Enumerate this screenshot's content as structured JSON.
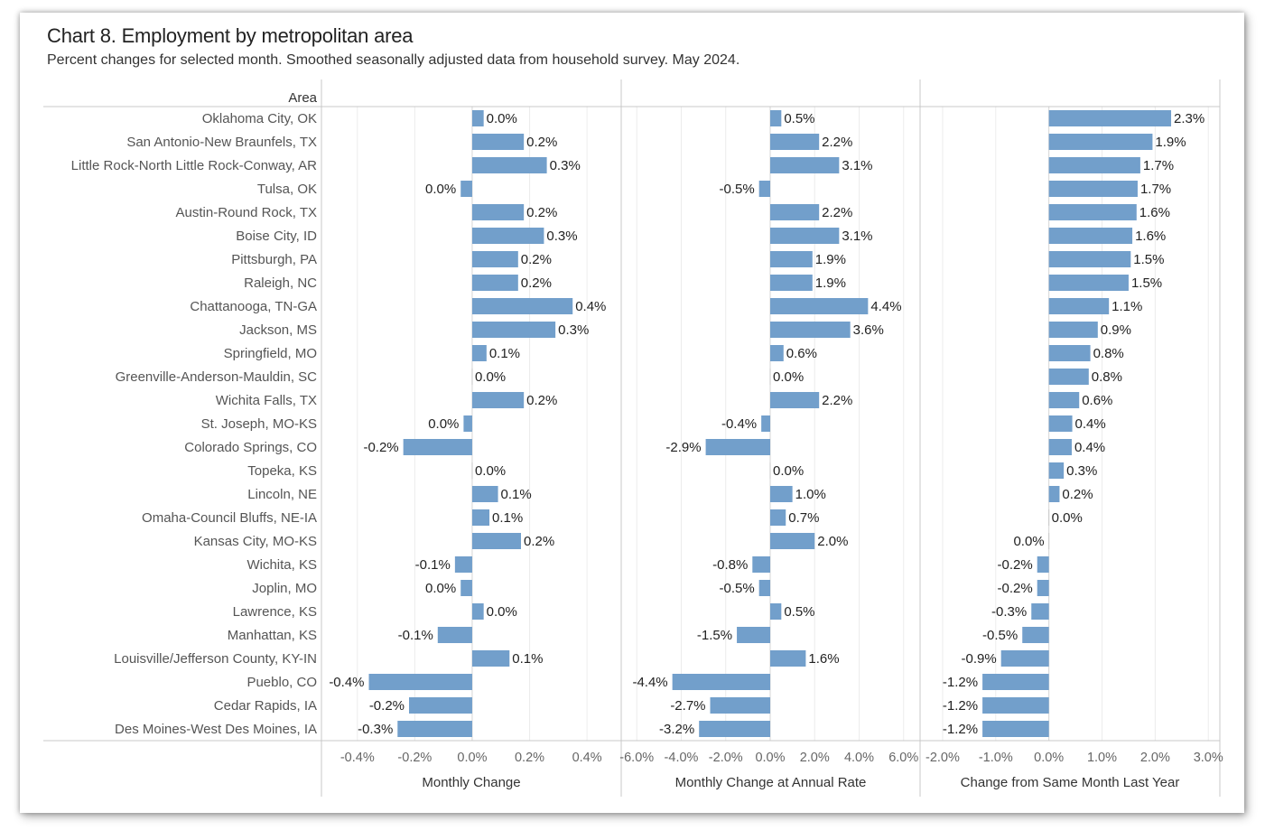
{
  "title": "Chart 8. Employment by metropolitan area",
  "subtitle": "Percent changes for selected month. Smoothed seasonally adjusted data from household survey. May 2024.",
  "chart_data": {
    "type": "bar",
    "orientation": "horizontal",
    "row_header": "Area",
    "categories": [
      "Oklahoma City, OK",
      "San Antonio-New Braunfels, TX",
      "Little Rock-North Little Rock-Conway, AR",
      "Tulsa, OK",
      "Austin-Round Rock, TX",
      "Boise City, ID",
      "Pittsburgh, PA",
      "Raleigh, NC",
      "Chattanooga, TN-GA",
      "Jackson, MS",
      "Springfield, MO",
      "Greenville-Anderson-Mauldin, SC",
      "Wichita Falls, TX",
      "St. Joseph, MO-KS",
      "Colorado Springs, CO",
      "Topeka, KS",
      "Lincoln, NE",
      "Omaha-Council Bluffs, NE-IA",
      "Kansas City, MO-KS",
      "Wichita, KS",
      "Joplin, MO",
      "Lawrence, KS",
      "Manhattan, KS",
      "Louisville/Jefferson County, KY-IN",
      "Pueblo, CO",
      "Cedar Rapids, IA",
      "Des Moines-West Des Moines, IA"
    ],
    "bar_color": "#729fcb",
    "grid": true,
    "panels": [
      {
        "name": "Monthly Change",
        "xlim": [
          -0.5,
          0.45
        ],
        "ticks": [
          -0.4,
          -0.2,
          0.0,
          0.2,
          0.4
        ],
        "tick_labels": [
          "-0.4%",
          "-0.2%",
          "0.0%",
          "0.2%",
          "0.4%"
        ],
        "values": [
          0.04,
          0.18,
          0.26,
          -0.04,
          0.18,
          0.25,
          0.16,
          0.16,
          0.35,
          0.29,
          0.05,
          0.0,
          0.18,
          -0.03,
          -0.24,
          0.0,
          0.09,
          0.06,
          0.17,
          -0.06,
          -0.04,
          0.04,
          -0.12,
          0.13,
          -0.36,
          -0.22,
          -0.26
        ],
        "labels": [
          "0.0%",
          "0.2%",
          "0.3%",
          "0.0%",
          "0.2%",
          "0.3%",
          "0.2%",
          "0.2%",
          "0.4%",
          "0.3%",
          "0.1%",
          "0.0%",
          "0.2%",
          "0.0%",
          "-0.2%",
          "0.0%",
          "0.1%",
          "0.1%",
          "0.2%",
          "-0.1%",
          "0.0%",
          "0.0%",
          "-0.1%",
          "0.1%",
          "-0.4%",
          "-0.2%",
          "-0.3%"
        ]
      },
      {
        "name": "Monthly Change at Annual Rate",
        "xlim": [
          -6.7,
          6.7
        ],
        "ticks": [
          -6,
          -4,
          -2,
          0,
          2,
          4,
          6
        ],
        "tick_labels": [
          "-6.0%",
          "-4.0%",
          "-2.0%",
          "0.0%",
          "2.0%",
          "4.0%",
          "6.0%"
        ],
        "values": [
          0.5,
          2.2,
          3.1,
          -0.5,
          2.2,
          3.1,
          1.9,
          1.9,
          4.4,
          3.6,
          0.6,
          0.0,
          2.2,
          -0.4,
          -2.9,
          0.0,
          1.0,
          0.7,
          2.0,
          -0.8,
          -0.5,
          0.5,
          -1.5,
          1.6,
          -4.4,
          -2.7,
          -3.2
        ],
        "labels": [
          "0.5%",
          "2.2%",
          "3.1%",
          "-0.5%",
          "2.2%",
          "3.1%",
          "1.9%",
          "1.9%",
          "4.4%",
          "3.6%",
          "0.6%",
          "0.0%",
          "2.2%",
          "-0.4%",
          "-2.9%",
          "0.0%",
          "1.0%",
          "0.7%",
          "2.0%",
          "-0.8%",
          "-0.5%",
          "0.5%",
          "-1.5%",
          "1.6%",
          "-4.4%",
          "-2.7%",
          "-3.2%"
        ]
      },
      {
        "name": "Change from Same Month Last Year",
        "xlim": [
          -2.05,
          3.2
        ],
        "ticks": [
          -2,
          -1,
          0,
          1,
          2,
          3
        ],
        "tick_labels": [
          "-2.0%",
          "-1.0%",
          "0.0%",
          "1.0%",
          "2.0%",
          "3.0%"
        ],
        "values": [
          2.3,
          1.95,
          1.72,
          1.67,
          1.65,
          1.57,
          1.54,
          1.5,
          1.13,
          0.92,
          0.78,
          0.75,
          0.57,
          0.44,
          0.43,
          0.28,
          0.2,
          0.0,
          0.0,
          -0.22,
          -0.22,
          -0.33,
          -0.5,
          -0.9,
          -1.25,
          -1.25,
          -1.25
        ],
        "labels": [
          "2.3%",
          "1.9%",
          "1.7%",
          "1.7%",
          "1.6%",
          "1.6%",
          "1.5%",
          "1.5%",
          "1.1%",
          "0.9%",
          "0.8%",
          "0.8%",
          "0.6%",
          "0.4%",
          "0.4%",
          "0.3%",
          "0.2%",
          "0.0%",
          "0.0%",
          "-0.2%",
          "-0.2%",
          "-0.3%",
          "-0.5%",
          "-0.9%",
          "-1.2%",
          "-1.2%",
          "-1.2%"
        ]
      }
    ]
  }
}
